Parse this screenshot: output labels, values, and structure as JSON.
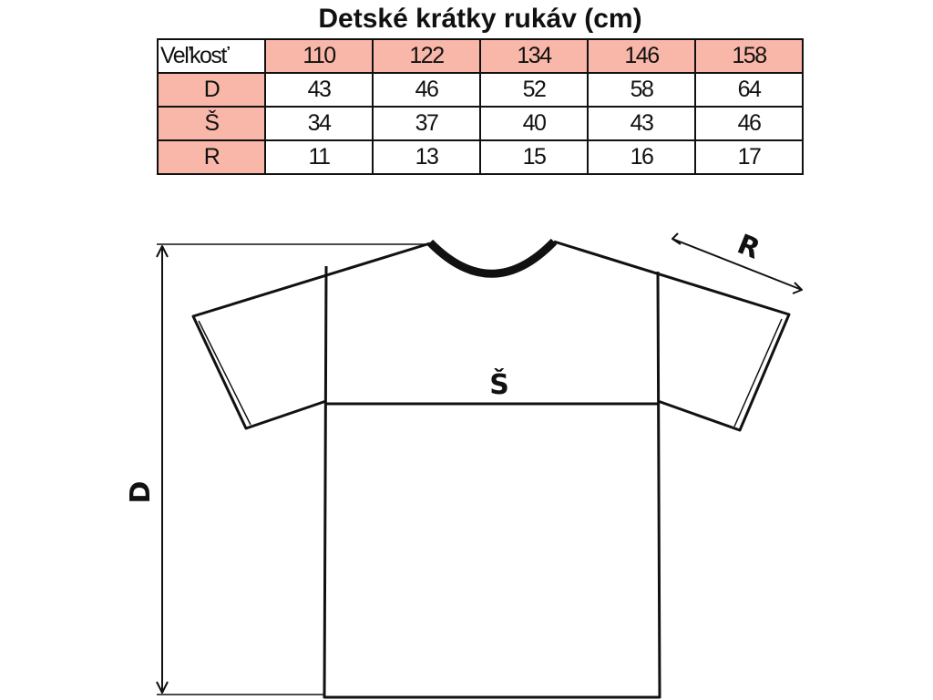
{
  "table": {
    "title": "Detské krátky rukáv (cm)",
    "header_label": "Veľkosť",
    "sizes": [
      "110",
      "122",
      "134",
      "146",
      "158"
    ],
    "rows": [
      {
        "label": "D",
        "values": [
          "43",
          "46",
          "52",
          "58",
          "64"
        ]
      },
      {
        "label": "Š",
        "values": [
          "34",
          "37",
          "40",
          "43",
          "46"
        ]
      },
      {
        "label": "R",
        "values": [
          "11",
          "13",
          "15",
          "16",
          "17"
        ]
      }
    ],
    "accent_color": "#f8b7a8"
  },
  "diagram": {
    "length_label": "D",
    "width_label": "Š",
    "sleeve_label": "R"
  }
}
